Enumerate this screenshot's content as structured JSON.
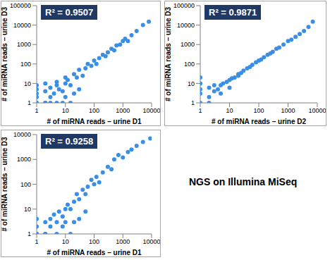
{
  "chart_data": [
    {
      "type": "scatter",
      "annotation": "R² = 0.9507",
      "x_label": "# of miRNA reads – urine D1",
      "y_label": "# of miRNA reads – urine D3",
      "log": true,
      "color": "#3a8ee6",
      "marker": "circle",
      "xlim": [
        1,
        10000
      ],
      "ylim": [
        1,
        100000
      ],
      "xticks": [
        1,
        10,
        100,
        1000,
        10000
      ],
      "yticks": [
        1,
        10,
        100,
        1000,
        10000,
        100000
      ],
      "x": [
        1,
        1,
        1,
        1,
        1,
        2,
        2,
        2,
        3,
        3,
        4,
        5,
        5,
        6,
        8,
        10,
        10,
        12,
        15,
        20,
        25,
        30,
        40,
        50,
        60,
        80,
        100,
        120,
        150,
        200,
        250,
        300,
        400,
        500,
        600,
        800,
        1000,
        1200,
        1500,
        2000,
        3000,
        5000,
        8000,
        1,
        2,
        3,
        5,
        8,
        10,
        15,
        20,
        30
      ],
      "y": [
        1,
        2,
        3,
        5,
        8,
        1,
        4,
        10,
        2,
        6,
        3,
        8,
        12,
        5,
        4,
        10,
        20,
        15,
        8,
        30,
        20,
        50,
        25,
        60,
        100,
        80,
        150,
        100,
        200,
        300,
        250,
        400,
        600,
        500,
        900,
        1000,
        1500,
        2000,
        1500,
        3000,
        5000,
        10000,
        15000,
        1,
        1,
        1,
        1,
        1,
        2,
        1,
        3,
        5
      ]
    },
    {
      "type": "scatter",
      "annotation": "R² = 0.9871",
      "x_label": "# of miRNA reads – urine D2",
      "y_label": "# of miRNA reads – urine D3",
      "log": true,
      "color": "#3a8ee6",
      "marker": "circle",
      "xlim": [
        1,
        10000
      ],
      "ylim": [
        1,
        100000
      ],
      "xticks": [
        1,
        10,
        100,
        1000,
        10000
      ],
      "yticks": [
        1,
        10,
        100,
        1000,
        10000,
        100000
      ],
      "x": [
        1,
        1,
        1,
        1,
        1,
        2,
        2,
        3,
        3,
        4,
        5,
        6,
        8,
        10,
        12,
        15,
        20,
        25,
        30,
        40,
        50,
        60,
        80,
        100,
        120,
        150,
        200,
        250,
        300,
        400,
        500,
        700,
        1000,
        1300,
        1800,
        2500,
        3500,
        5000,
        7000,
        2,
        5,
        10,
        20
      ],
      "y": [
        1,
        3,
        5,
        10,
        20,
        2,
        6,
        4,
        8,
        5,
        8,
        10,
        12,
        15,
        18,
        20,
        30,
        35,
        45,
        60,
        70,
        90,
        120,
        150,
        170,
        220,
        300,
        350,
        420,
        600,
        700,
        1000,
        1500,
        1800,
        2500,
        3500,
        5000,
        8000,
        15000,
        1,
        3,
        6,
        25
      ]
    },
    {
      "type": "scatter",
      "annotation": "R² = 0.9258",
      "x_label": "# of miRNA reads – urine D1",
      "y_label": "# of miRNA reads – urine D3",
      "log": true,
      "color": "#3a8ee6",
      "marker": "circle",
      "xlim": [
        1,
        10000
      ],
      "ylim": [
        1,
        10000
      ],
      "xticks": [
        1,
        10,
        100,
        1000,
        10000
      ],
      "yticks": [
        1,
        10,
        100,
        1000,
        10000
      ],
      "x": [
        1,
        1,
        1,
        1,
        2,
        2,
        3,
        3,
        4,
        5,
        6,
        8,
        10,
        10,
        12,
        15,
        20,
        25,
        30,
        40,
        50,
        60,
        80,
        100,
        120,
        150,
        200,
        300,
        400,
        500,
        700,
        1000,
        1500,
        2000,
        3000,
        5000,
        9000,
        1,
        2,
        5,
        8,
        15,
        20,
        30,
        50
      ],
      "y": [
        1,
        2,
        4,
        1,
        3,
        1,
        4,
        2,
        6,
        3,
        8,
        5,
        10,
        3,
        15,
        10,
        20,
        40,
        25,
        60,
        40,
        80,
        150,
        100,
        200,
        120,
        300,
        500,
        400,
        1000,
        1500,
        1200,
        2000,
        2500,
        3500,
        5000,
        7000,
        1,
        1,
        1,
        2,
        1,
        3,
        4,
        8
      ]
    }
  ],
  "text": "NGS on Illumina MiSeq"
}
